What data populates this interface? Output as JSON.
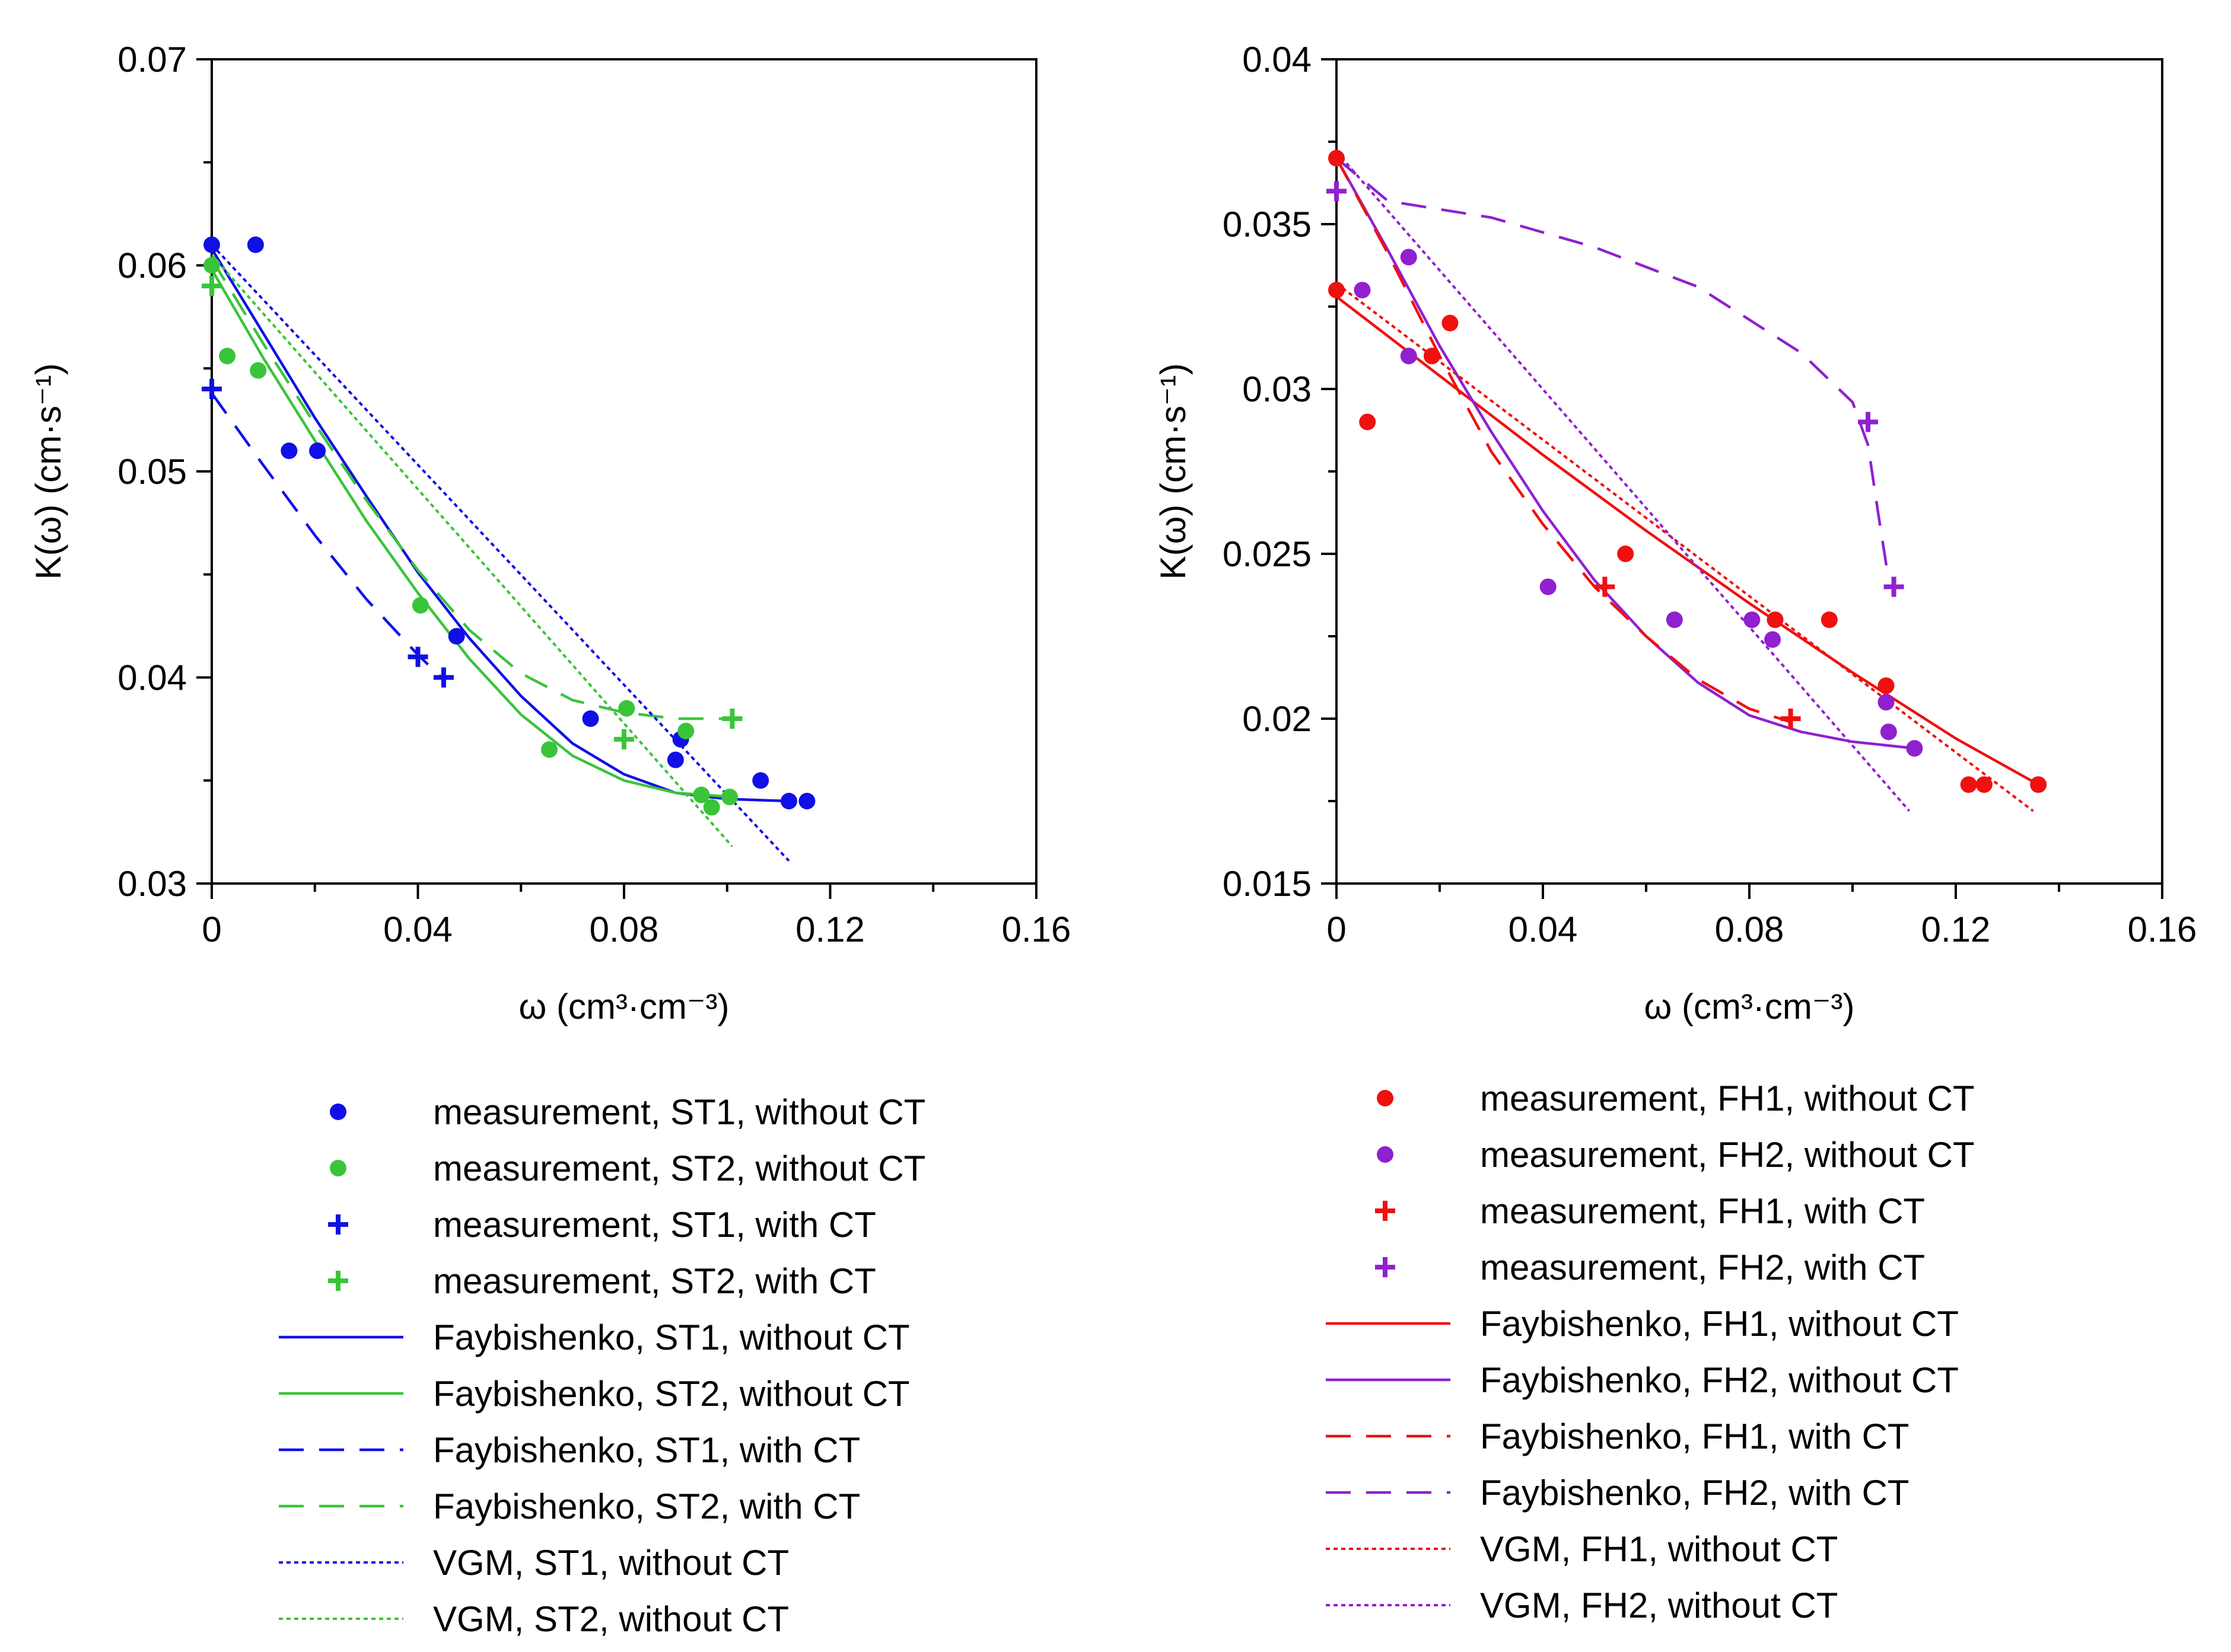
{
  "chart_data": [
    {
      "id": "left",
      "type": "scatter",
      "xlabel": "ω (cm³·cm⁻³)",
      "ylabel": "K(ω) (cm·s⁻¹)",
      "xlim": [
        0,
        0.16
      ],
      "ylim": [
        0.03,
        0.07
      ],
      "xticks": [
        "0",
        "0.04",
        "0.08",
        "0.12",
        "0.16"
      ],
      "xtick_values": [
        0,
        0.04,
        0.08,
        0.12,
        0.16
      ],
      "yticks": [
        "0.03",
        "0.04",
        "0.05",
        "0.06",
        "0.07"
      ],
      "ytick_values": [
        0.03,
        0.04,
        0.05,
        0.06,
        0.07
      ],
      "series": [
        {
          "name": "measurement, ST1, without CT",
          "kind": "marker",
          "marker": "circle",
          "color": "#1010e6",
          "x": [
            0,
            0.0085,
            0.015,
            0.0205,
            0.0475,
            0.0735,
            0.09,
            0.091,
            0.1065,
            0.112,
            0.1155
          ],
          "y": [
            0.061,
            0.061,
            0.051,
            0.051,
            0.042,
            0.038,
            0.036,
            0.037,
            0.035,
            0.034,
            0.034
          ]
        },
        {
          "name": "measurement, ST2, without CT",
          "kind": "marker",
          "marker": "circle",
          "color": "#3ac43a",
          "x": [
            0,
            0.003,
            0.009,
            0.0405,
            0.0655,
            0.0805,
            0.092,
            0.095,
            0.097,
            0.1005
          ],
          "y": [
            0.06,
            0.0556,
            0.0549,
            0.0435,
            0.0365,
            0.0385,
            0.0374,
            0.0343,
            0.0337,
            0.0342
          ]
        },
        {
          "name": "measurement, ST1, with CT",
          "kind": "marker",
          "marker": "plus",
          "color": "#1010e6",
          "x": [
            0,
            0.04,
            0.045
          ],
          "y": [
            0.054,
            0.041,
            0.04
          ]
        },
        {
          "name": "measurement, ST2, with CT",
          "kind": "marker",
          "marker": "plus",
          "color": "#3ac43a",
          "x": [
            0,
            0.08,
            0.101
          ],
          "y": [
            0.059,
            0.037,
            0.038
          ]
        },
        {
          "name": "Faybishenko, ST1, without CT",
          "kind": "line",
          "dash": "solid",
          "color": "#1010e6",
          "x": [
            0,
            0.01,
            0.02,
            0.03,
            0.04,
            0.05,
            0.06,
            0.07,
            0.08,
            0.09,
            0.1,
            0.112
          ],
          "y": [
            0.0608,
            0.0567,
            0.0526,
            0.0488,
            0.0451,
            0.0419,
            0.0391,
            0.0368,
            0.0353,
            0.0344,
            0.0341,
            0.034
          ]
        },
        {
          "name": "Faybishenko, ST2, without CT",
          "kind": "line",
          "dash": "solid",
          "color": "#3ac43a",
          "x": [
            0,
            0.01,
            0.02,
            0.03,
            0.04,
            0.05,
            0.06,
            0.07,
            0.08,
            0.09,
            0.101
          ],
          "y": [
            0.0598,
            0.0555,
            0.0515,
            0.0476,
            0.0441,
            0.0409,
            0.0382,
            0.0362,
            0.035,
            0.0344,
            0.0342
          ]
        },
        {
          "name": "Faybishenko, ST1, with CT",
          "kind": "line",
          "dash": "dashed",
          "color": "#1010e6",
          "x": [
            0,
            0.01,
            0.02,
            0.03,
            0.04,
            0.045
          ],
          "y": [
            0.0538,
            0.0503,
            0.0469,
            0.0438,
            0.0411,
            0.0399
          ]
        },
        {
          "name": "Faybishenko, ST2, with CT",
          "kind": "line",
          "dash": "dashed",
          "color": "#3ac43a",
          "x": [
            0,
            0.01,
            0.02,
            0.03,
            0.04,
            0.05,
            0.06,
            0.07,
            0.08,
            0.09,
            0.1
          ],
          "y": [
            0.0603,
            0.0562,
            0.0523,
            0.0486,
            0.0452,
            0.0423,
            0.0402,
            0.0389,
            0.0383,
            0.038,
            0.038
          ]
        },
        {
          "name": "VGM, ST1, without CT",
          "kind": "line",
          "dash": "dotted",
          "color": "#1010e6",
          "x": [
            0,
            0.112
          ],
          "y": [
            0.061,
            0.0311
          ]
        },
        {
          "name": "VGM, ST2, without CT",
          "kind": "line",
          "dash": "dotted",
          "color": "#3ac43a",
          "x": [
            0,
            0.101
          ],
          "y": [
            0.0605,
            0.0318
          ]
        }
      ]
    },
    {
      "id": "right",
      "type": "scatter",
      "xlabel": "ω (cm³·cm⁻³)",
      "ylabel": "K(ω) (cm·s⁻¹)",
      "xlim": [
        0,
        0.16
      ],
      "ylim": [
        0.015,
        0.04
      ],
      "xticks": [
        "0",
        "0.04",
        "0.08",
        "0.12",
        "0.16"
      ],
      "xtick_values": [
        0,
        0.04,
        0.08,
        0.12,
        0.16
      ],
      "yticks": [
        "0.015",
        "0.02",
        "0.025",
        "0.03",
        "0.035",
        "0.04"
      ],
      "ytick_values": [
        0.015,
        0.02,
        0.025,
        0.03,
        0.035,
        0.04
      ],
      "series": [
        {
          "name": "measurement, FH1, without CT",
          "kind": "marker",
          "marker": "circle",
          "color": "#f01010",
          "x": [
            0,
            0,
            0.006,
            0.0185,
            0.022,
            0.056,
            0.085,
            0.0955,
            0.1065,
            0.1225,
            0.1255,
            0.136
          ],
          "y": [
            0.037,
            0.033,
            0.029,
            0.031,
            0.032,
            0.025,
            0.023,
            0.023,
            0.021,
            0.018,
            0.018,
            0.018
          ]
        },
        {
          "name": "measurement, FH2, without CT",
          "kind": "marker",
          "marker": "circle",
          "color": "#9020d0",
          "x": [
            0.005,
            0.014,
            0.014,
            0.041,
            0.0655,
            0.0805,
            0.0845,
            0.1065,
            0.107,
            0.112
          ],
          "y": [
            0.033,
            0.034,
            0.031,
            0.024,
            0.023,
            0.023,
            0.0224,
            0.0205,
            0.0196,
            0.0191
          ]
        },
        {
          "name": "measurement, FH1, with CT",
          "kind": "marker",
          "marker": "plus",
          "color": "#f01010",
          "x": [
            0.052,
            0.088
          ],
          "y": [
            0.024,
            0.02
          ]
        },
        {
          "name": "measurement, FH2, with CT",
          "kind": "marker",
          "marker": "plus",
          "color": "#9020d0",
          "x": [
            0,
            0.103,
            0.108
          ],
          "y": [
            0.036,
            0.029,
            0.024
          ]
        },
        {
          "name": "Faybishenko, FH1, without CT",
          "kind": "line",
          "dash": "solid",
          "color": "#f01010",
          "x": [
            0,
            0.02,
            0.04,
            0.06,
            0.08,
            0.1,
            0.12,
            0.136
          ],
          "y": [
            0.0328,
            0.0304,
            0.028,
            0.0257,
            0.0235,
            0.0214,
            0.0194,
            0.018
          ]
        },
        {
          "name": "Faybishenko, FH2, without CT",
          "kind": "line",
          "dash": "solid",
          "color": "#9020d0",
          "x": [
            0,
            0.01,
            0.02,
            0.03,
            0.04,
            0.05,
            0.06,
            0.07,
            0.08,
            0.09,
            0.1,
            0.112
          ],
          "y": [
            0.037,
            0.0342,
            0.0313,
            0.0287,
            0.0263,
            0.0242,
            0.0225,
            0.0211,
            0.0201,
            0.0196,
            0.0193,
            0.0191
          ]
        },
        {
          "name": "Faybishenko, FH1, with CT",
          "kind": "line",
          "dash": "dashed",
          "color": "#f01010",
          "x": [
            0,
            0.01,
            0.02,
            0.03,
            0.04,
            0.05,
            0.06,
            0.07,
            0.08,
            0.088
          ],
          "y": [
            0.037,
            0.0341,
            0.031,
            0.0281,
            0.0259,
            0.024,
            0.0225,
            0.0212,
            0.0203,
            0.0199
          ]
        },
        {
          "name": "Faybishenko, FH2, with CT",
          "kind": "line",
          "dash": "dashed",
          "color": "#9020d0",
          "x": [
            0,
            0.01,
            0.03,
            0.05,
            0.07,
            0.09,
            0.1,
            0.103,
            0.105,
            0.107
          ],
          "y": [
            0.037,
            0.0357,
            0.0352,
            0.0343,
            0.0331,
            0.0311,
            0.0296,
            0.0283,
            0.0262,
            0.0242
          ]
        },
        {
          "name": "VGM, FH1, without CT",
          "kind": "line",
          "dash": "dotted",
          "color": "#f01010",
          "x": [
            0,
            0.135
          ],
          "y": [
            0.0332,
            0.0172
          ]
        },
        {
          "name": "VGM, FH2, without CT",
          "kind": "line",
          "dash": "dotted",
          "color": "#9020d0",
          "x": [
            0,
            0.111
          ],
          "y": [
            0.0372,
            0.0172
          ]
        }
      ]
    }
  ]
}
